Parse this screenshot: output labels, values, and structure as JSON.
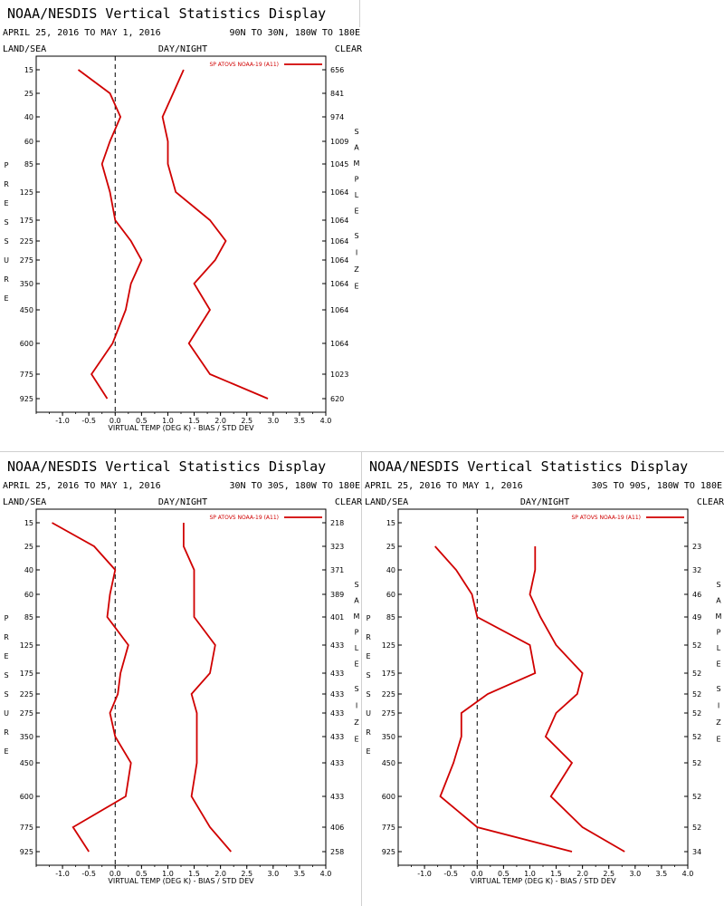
{
  "page": {
    "title": "NOAA/NESDIS Vertical Statistics Display",
    "date_range": "APRIL 25, 2016 TO MAY 1, 2016",
    "header_left": "LAND/SEA",
    "header_mid": "DAY/NIGHT",
    "header_right": "CLEAR",
    "xlabel": "VIRTUAL TEMP (DEG K) - BIAS / STD DEV",
    "left_vertical_label": "PRESSURE",
    "right_vertical_label": "SAMPLE SIZE",
    "legend_entry": "SP ATOVS NOAA-19 (A11)",
    "colors": {
      "series": "#d00000",
      "axis": "#000000"
    }
  },
  "chart_data": [
    {
      "type": "line",
      "region": "90N TO 30N, 180W TO 180E",
      "pressure_levels": [
        15,
        25,
        40,
        60,
        85,
        125,
        175,
        225,
        275,
        350,
        450,
        600,
        775,
        925
      ],
      "sample_size": [
        "656",
        "841",
        "974",
        "1009",
        "1045",
        "1064",
        "1064",
        "1064",
        "1064",
        "1064",
        "1064",
        "1064",
        "1023",
        "620"
      ],
      "xlim": [
        -1.5,
        4.0
      ],
      "xticks": [
        "-1.0",
        "-0.5",
        "0.0",
        "0.5",
        "1.0",
        "1.5",
        "2.0",
        "2.5",
        "3.0",
        "3.5",
        "4.0"
      ],
      "series": [
        {
          "role": "bias",
          "values": [
            -0.7,
            -0.1,
            0.1,
            -0.1,
            -0.25,
            -0.1,
            0.0,
            0.3,
            0.5,
            0.3,
            0.2,
            -0.05,
            -0.45,
            -0.15
          ]
        },
        {
          "role": "std",
          "values": [
            1.3,
            1.1,
            0.9,
            1.0,
            1.0,
            1.15,
            1.8,
            2.1,
            1.9,
            1.5,
            1.8,
            1.4,
            1.8,
            2.9
          ]
        }
      ]
    },
    {
      "type": "line",
      "region": "30N TO 30S, 180W TO 180E",
      "pressure_levels": [
        15,
        25,
        40,
        60,
        85,
        125,
        175,
        225,
        275,
        350,
        450,
        600,
        775,
        925
      ],
      "sample_size": [
        "218",
        "323",
        "371",
        "389",
        "401",
        "433",
        "433",
        "433",
        "433",
        "433",
        "433",
        "433",
        "406",
        "258"
      ],
      "xlim": [
        -1.5,
        4.0
      ],
      "xticks": [
        "-1.0",
        "-0.5",
        "0.0",
        "0.5",
        "1.0",
        "1.5",
        "2.0",
        "2.5",
        "3.0",
        "3.5",
        "4.0"
      ],
      "series": [
        {
          "role": "bias",
          "values": [
            -1.2,
            -0.4,
            0.0,
            -0.1,
            -0.15,
            0.25,
            0.1,
            0.05,
            -0.1,
            0.0,
            0.3,
            0.2,
            -0.8,
            -0.5
          ]
        },
        {
          "role": "std",
          "values": [
            1.3,
            1.3,
            1.5,
            1.5,
            1.5,
            1.9,
            1.8,
            1.45,
            1.55,
            1.55,
            1.55,
            1.45,
            1.8,
            2.2
          ]
        }
      ]
    },
    {
      "type": "line",
      "region": "30S TO 90S, 180W TO 180E",
      "pressure_levels": [
        15,
        25,
        40,
        60,
        85,
        125,
        175,
        225,
        275,
        350,
        450,
        600,
        775,
        925
      ],
      "sample_size": [
        "",
        "23",
        "32",
        "46",
        "49",
        "52",
        "52",
        "52",
        "52",
        "52",
        "52",
        "52",
        "52",
        "34"
      ],
      "xlim": [
        -1.5,
        4.0
      ],
      "xticks": [
        "-1.0",
        "-0.5",
        "0.0",
        "0.5",
        "1.0",
        "1.5",
        "2.0",
        "2.5",
        "3.0",
        "3.5",
        "4.0"
      ],
      "series": [
        {
          "role": "bias",
          "values": [
            null,
            -0.8,
            -0.4,
            -0.1,
            0.0,
            1.0,
            1.1,
            0.2,
            -0.3,
            -0.3,
            -0.45,
            -0.7,
            0.0,
            1.8
          ]
        },
        {
          "role": "std",
          "values": [
            null,
            1.1,
            1.1,
            1.0,
            1.2,
            1.5,
            2.0,
            1.9,
            1.5,
            1.3,
            1.8,
            1.4,
            2.0,
            2.8
          ]
        }
      ]
    }
  ]
}
